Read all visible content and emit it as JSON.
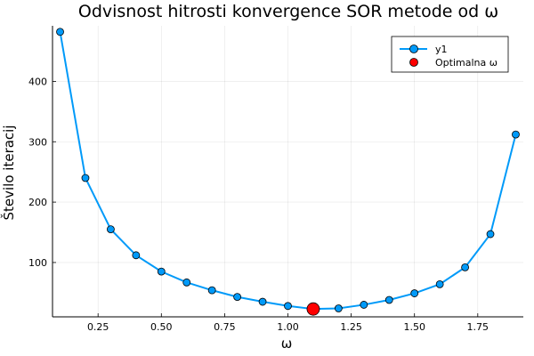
{
  "chart_data": {
    "type": "line",
    "title": "Odvisnost hitrosti konvergence SOR metode od ω",
    "xlabel": "ω",
    "ylabel": "Število iteracij",
    "xlim": [
      0.07,
      1.93
    ],
    "ylim": [
      10,
      492
    ],
    "x_ticks": [
      {
        "value": 0.25,
        "label": "0.25"
      },
      {
        "value": 0.5,
        "label": "0.50"
      },
      {
        "value": 0.75,
        "label": "0.75"
      },
      {
        "value": 1.0,
        "label": "1.00"
      },
      {
        "value": 1.25,
        "label": "1.25"
      },
      {
        "value": 1.5,
        "label": "1.50"
      },
      {
        "value": 1.75,
        "label": "1.75"
      }
    ],
    "y_ticks": [
      {
        "value": 100,
        "label": "100"
      },
      {
        "value": 200,
        "label": "200"
      },
      {
        "value": 300,
        "label": "300"
      },
      {
        "value": 400,
        "label": "400"
      }
    ],
    "grid": true,
    "legend_position": "top-right",
    "series": [
      {
        "name": "y1",
        "color": "#009af9",
        "style": "line-with-markers",
        "x": [
          0.1,
          0.2,
          0.3,
          0.4,
          0.5,
          0.6,
          0.7,
          0.8,
          0.9,
          1.0,
          1.1,
          1.2,
          1.3,
          1.4,
          1.5,
          1.6,
          1.7,
          1.8,
          1.9
        ],
        "y": [
          482,
          240,
          155,
          112,
          85,
          67,
          54,
          43,
          35,
          28,
          23,
          24,
          30,
          38,
          49,
          64,
          92,
          147,
          312
        ]
      },
      {
        "name": "Optimalna ω",
        "color": "#ff0000",
        "style": "marker",
        "x": [
          1.1
        ],
        "y": [
          23
        ]
      }
    ]
  }
}
